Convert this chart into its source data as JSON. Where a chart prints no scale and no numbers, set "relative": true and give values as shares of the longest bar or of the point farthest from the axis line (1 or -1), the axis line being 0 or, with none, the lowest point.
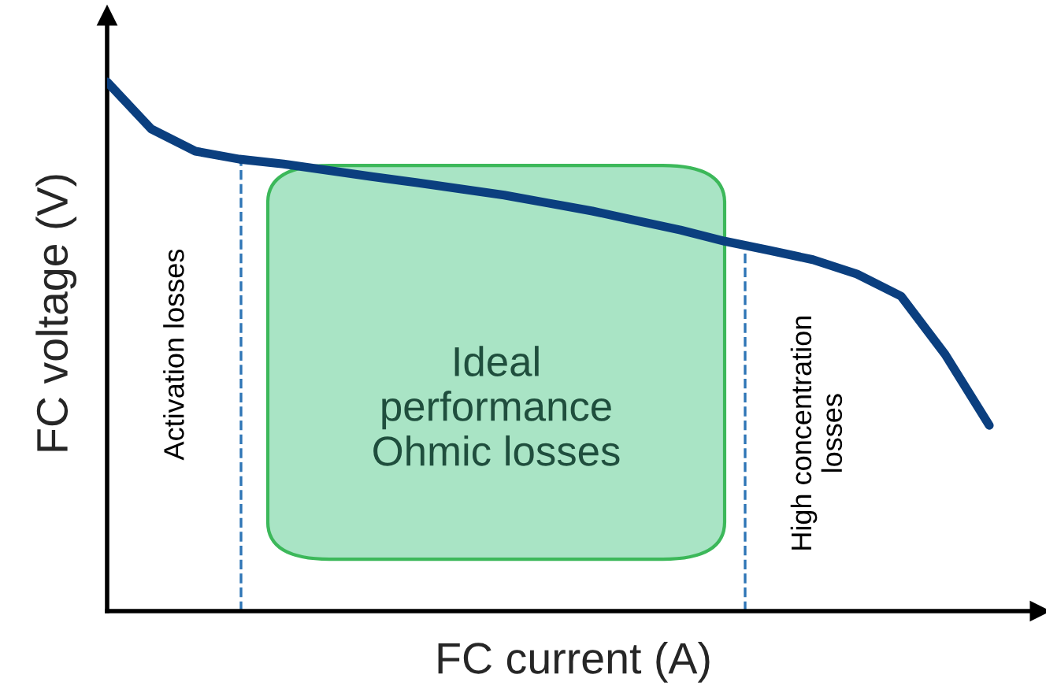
{
  "chart_data": {
    "type": "line",
    "relative": true,
    "xlabel": "FC current (A)",
    "ylabel": "FC voltage (V)",
    "marker": "none",
    "line_style": "solid",
    "categories": [
      null,
      null,
      null,
      null,
      null,
      null,
      null,
      null,
      null,
      null,
      null,
      null,
      null,
      null,
      null,
      null,
      null,
      null,
      null,
      null,
      null
    ],
    "series": [
      {
        "color": "#0b3f7f",
        "values": [
          1.0,
          0.911,
          0.869,
          0.854,
          0.845,
          0.833,
          0.821,
          0.81,
          0.798,
          0.786,
          0.771,
          0.756,
          0.738,
          0.72,
          0.699,
          0.682,
          0.664,
          0.637,
          0.595,
          0.485,
          0.351
        ]
      }
    ],
    "annotations": [
      "Activation losses",
      "Ideal\nperformance\nOhmic losses",
      "High concentration\nlosses"
    ]
  }
}
